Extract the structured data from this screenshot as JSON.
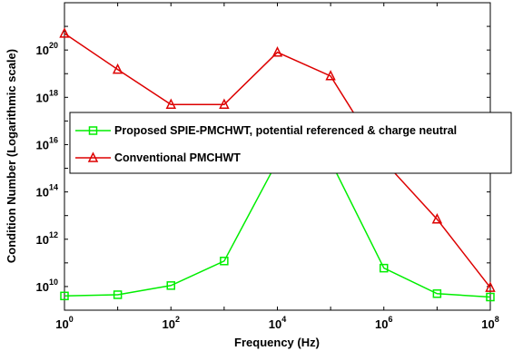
{
  "chart_data": {
    "type": "line",
    "xlabel": "Frequency (Hz)",
    "ylabel": "Condition Number (Logarithmic scale)",
    "x_scale": "log",
    "y_scale": "log",
    "xlim": [
      1,
      100000000
    ],
    "ylim": [
      1000000000,
      10000000000000000000000
    ],
    "x_ticks": [
      {
        "value": 1,
        "base": "10",
        "exp": "0"
      },
      {
        "value": 100,
        "base": "10",
        "exp": "2"
      },
      {
        "value": 10000,
        "base": "10",
        "exp": "4"
      },
      {
        "value": 1000000,
        "base": "10",
        "exp": "6"
      },
      {
        "value": 100000000,
        "base": "10",
        "exp": "8"
      }
    ],
    "y_ticks": [
      {
        "value": 10000000000,
        "base": "10",
        "exp": "10"
      },
      {
        "value": 1000000000000,
        "base": "10",
        "exp": "12"
      },
      {
        "value": 100000000000000,
        "base": "10",
        "exp": "14"
      },
      {
        "value": 10000000000000000,
        "base": "10",
        "exp": "16"
      },
      {
        "value": 1000000000000000000,
        "base": "10",
        "exp": "18"
      },
      {
        "value": 100000000000000000000,
        "base": "10",
        "exp": "20"
      }
    ],
    "grid": false,
    "legend_position": "center",
    "series": [
      {
        "name": "Proposed SPIE-PMCHWT, potential referenced & charge neutral",
        "color": "#00ee00",
        "marker": "square",
        "x": [
          1,
          10,
          100,
          1000,
          10000,
          100000,
          1000000,
          10000000,
          100000000
        ],
        "y": [
          4000000000,
          4500000000,
          11000000000,
          120000000000,
          2000000000000000,
          2000000000000000,
          60000000000,
          5000000000,
          3600000000
        ]
      },
      {
        "name": "Conventional PMCHWT",
        "color": "#dd0000",
        "marker": "triangle",
        "x": [
          1,
          10,
          100,
          1000,
          10000,
          100000,
          1000000,
          10000000,
          100000000
        ],
        "y": [
          500000000000000000000,
          15000000000000000000,
          500000000000000000,
          500000000000000000,
          80000000000000000000,
          8000000000000000000,
          2000000000000000,
          7000000000000,
          9000000000
        ]
      }
    ]
  }
}
